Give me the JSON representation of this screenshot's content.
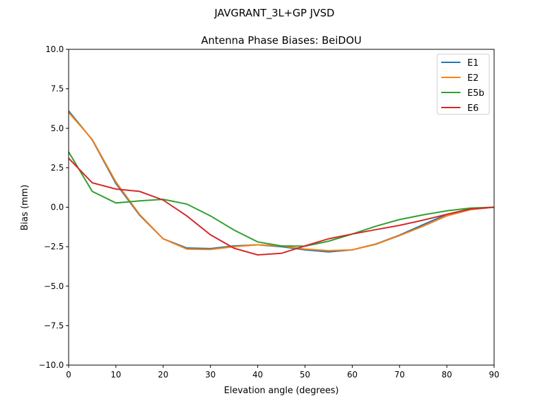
{
  "chart_data": {
    "type": "line",
    "suptitle": "JAVGRANT_3L+GP  JVSD",
    "title": "Antenna Phase Biases: BeiDOU",
    "xlabel": "Elevation angle (degrees)",
    "ylabel": "Bias (mm)",
    "xlim": [
      0,
      90
    ],
    "ylim": [
      -10,
      10
    ],
    "xticks": [
      0,
      10,
      20,
      30,
      40,
      50,
      60,
      70,
      80,
      90
    ],
    "xtick_labels": [
      "0",
      "10",
      "20",
      "30",
      "40",
      "50",
      "60",
      "70",
      "80",
      "90"
    ],
    "yticks": [
      -10,
      -7.5,
      -5,
      -2.5,
      0,
      2.5,
      5,
      7.5,
      10
    ],
    "ytick_labels": [
      "−10.0",
      "−7.5",
      "−5.0",
      "−2.5",
      "0.0",
      "2.5",
      "5.0",
      "7.5",
      "10.0"
    ],
    "grid": false,
    "legend_position": "top-right",
    "x": [
      0,
      5,
      10,
      15,
      20,
      25,
      30,
      35,
      40,
      45,
      50,
      55,
      60,
      65,
      70,
      75,
      80,
      85,
      90
    ],
    "series": [
      {
        "name": "E1",
        "color": "#1f77b4",
        "values": [
          6.1,
          4.27,
          1.5,
          -0.5,
          -2.0,
          -2.58,
          -2.62,
          -2.45,
          -2.38,
          -2.5,
          -2.7,
          -2.83,
          -2.7,
          -2.33,
          -1.77,
          -1.1,
          -0.45,
          -0.1,
          0
        ]
      },
      {
        "name": "E2",
        "color": "#ff7f0e",
        "values": [
          6.0,
          4.3,
          1.6,
          -0.45,
          -2.0,
          -2.65,
          -2.68,
          -2.5,
          -2.38,
          -2.45,
          -2.65,
          -2.75,
          -2.7,
          -2.35,
          -1.8,
          -1.2,
          -0.55,
          -0.15,
          0
        ]
      },
      {
        "name": "E5b",
        "color": "#2ca02c",
        "values": [
          3.5,
          1.0,
          0.27,
          0.4,
          0.5,
          0.2,
          -0.55,
          -1.45,
          -2.2,
          -2.45,
          -2.47,
          -2.15,
          -1.7,
          -1.2,
          -0.78,
          -0.48,
          -0.23,
          -0.05,
          0
        ]
      },
      {
        "name": "E6",
        "color": "#d62728",
        "values": [
          3.1,
          1.55,
          1.15,
          1.0,
          0.45,
          -0.55,
          -1.75,
          -2.6,
          -3.02,
          -2.92,
          -2.45,
          -2.0,
          -1.7,
          -1.42,
          -1.15,
          -0.82,
          -0.45,
          -0.12,
          0
        ]
      }
    ]
  }
}
